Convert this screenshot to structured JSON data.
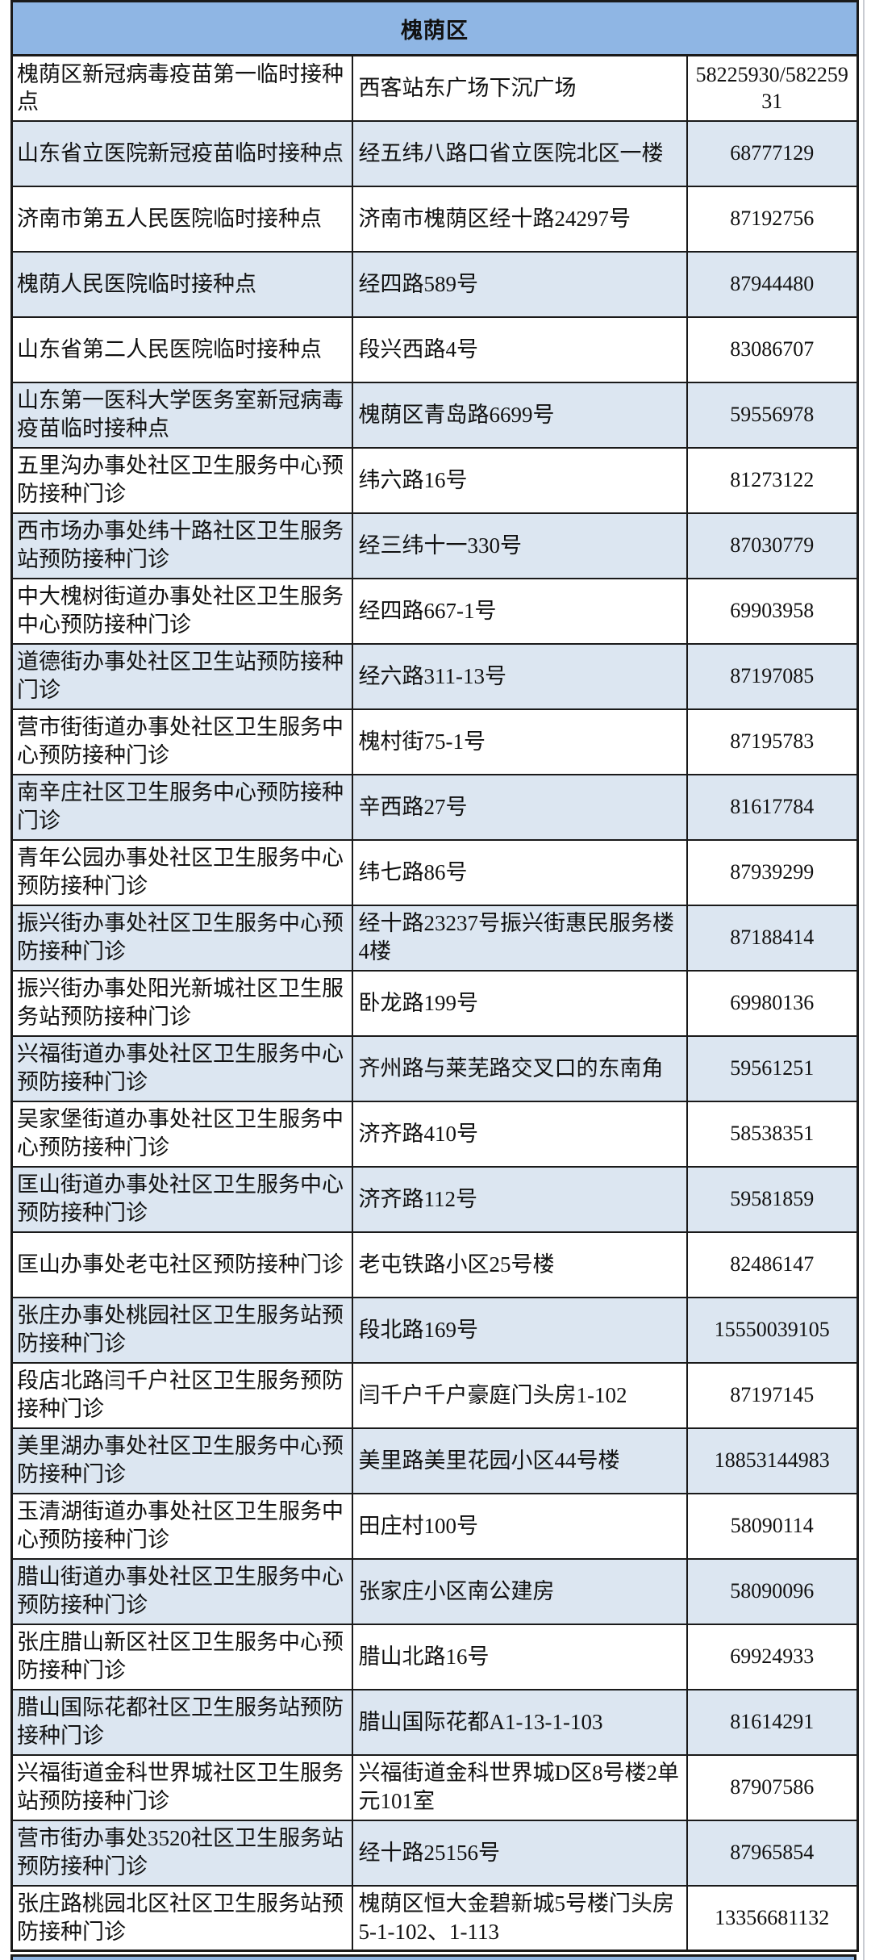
{
  "table": {
    "district": "槐荫区",
    "colors": {
      "header_bg": "#8fb6e4",
      "row_alt_bg": "#dce6f1",
      "border": "#1a1a1a"
    },
    "columns": [
      "site",
      "address",
      "phone"
    ],
    "rows": [
      {
        "site": "槐荫区新冠病毒疫苗第一临时接种点",
        "address": "西客站东广场下沉广场",
        "phone": "58225930/58225931"
      },
      {
        "site": "山东省立医院新冠疫苗临时接种点",
        "address": "经五纬八路口省立医院北区一楼",
        "phone": "68777129"
      },
      {
        "site": "济南市第五人民医院临时接种点",
        "address": "济南市槐荫区经十路24297号",
        "phone": "87192756"
      },
      {
        "site": "槐荫人民医院临时接种点",
        "address": "经四路589号",
        "phone": "87944480"
      },
      {
        "site": "山东省第二人民医院临时接种点",
        "address": "段兴西路4号",
        "phone": "83086707"
      },
      {
        "site": "山东第一医科大学医务室新冠病毒疫苗临时接种点",
        "address": "槐荫区青岛路6699号",
        "phone": "59556978"
      },
      {
        "site": "五里沟办事处社区卫生服务中心预防接种门诊",
        "address": "纬六路16号",
        "phone": "81273122"
      },
      {
        "site": "西市场办事处纬十路社区卫生服务站预防接种门诊",
        "address": "经三纬十一330号",
        "phone": "87030779"
      },
      {
        "site": "中大槐树街道办事处社区卫生服务中心预防接种门诊",
        "address": "经四路667-1号",
        "phone": "69903958"
      },
      {
        "site": "道德街办事处社区卫生站预防接种门诊",
        "address": "经六路311-13号",
        "phone": "87197085"
      },
      {
        "site": "营市街街道办事处社区卫生服务中心预防接种门诊",
        "address": "槐村街75-1号",
        "phone": "87195783"
      },
      {
        "site": "南辛庄社区卫生服务中心预防接种门诊",
        "address": "辛西路27号",
        "phone": "81617784"
      },
      {
        "site": "青年公园办事处社区卫生服务中心预防接种门诊",
        "address": "纬七路86号",
        "phone": "87939299"
      },
      {
        "site": "振兴街办事处社区卫生服务中心预防接种门诊",
        "address": "经十路23237号振兴街惠民服务楼4楼",
        "phone": "87188414"
      },
      {
        "site": "振兴街办事处阳光新城社区卫生服务站预防接种门诊",
        "address": "卧龙路199号",
        "phone": "69980136"
      },
      {
        "site": "兴福街道办事处社区卫生服务中心预防接种门诊",
        "address": "齐州路与莱芜路交叉口的东南角",
        "phone": "59561251"
      },
      {
        "site": "吴家堡街道办事处社区卫生服务中心预防接种门诊",
        "address": "济齐路410号",
        "phone": "58538351"
      },
      {
        "site": "匡山街道办事处社区卫生服务中心预防接种门诊",
        "address": "济齐路112号",
        "phone": "59581859"
      },
      {
        "site": "匡山办事处老屯社区预防接种门诊",
        "address": "老屯铁路小区25号楼",
        "phone": "82486147"
      },
      {
        "site": "张庄办事处桃园社区卫生服务站预防接种门诊",
        "address": "段北路169号",
        "phone": "15550039105"
      },
      {
        "site": "段店北路闫千户社区卫生服务预防接种门诊",
        "address": "闫千户千户豪庭门头房1-102",
        "phone": "87197145"
      },
      {
        "site": "美里湖办事处社区卫生服务中心预防接种门诊",
        "address": "美里路美里花园小区44号楼",
        "phone": "18853144983"
      },
      {
        "site": "玉清湖街道办事处社区卫生服务中心预防接种门诊",
        "address": "田庄村100号",
        "phone": "58090114"
      },
      {
        "site": "腊山街道办事处社区卫生服务中心预防接种门诊",
        "address": "张家庄小区南公建房",
        "phone": "58090096"
      },
      {
        "site": "张庄腊山新区社区卫生服务中心预防接种门诊",
        "address": "腊山北路16号",
        "phone": "69924933"
      },
      {
        "site": "腊山国际花都社区卫生服务站预防接种门诊",
        "address": "腊山国际花都A1-13-1-103",
        "phone": "81614291"
      },
      {
        "site": "兴福街道金科世界城社区卫生服务站预防接种门诊",
        "address": "兴福街道金科世界城D区8号楼2单元101室",
        "phone": "87907586"
      },
      {
        "site": "营市街办事处3520社区卫生服务站预防接种门诊",
        "address": "经十路25156号",
        "phone": "87965854"
      },
      {
        "site": "张庄路桃园北区社区卫生服务站预防接种门诊",
        "address": "槐荫区恒大金碧新城5号楼门头房5-1-102、1-113",
        "phone": "13356681132"
      }
    ]
  }
}
